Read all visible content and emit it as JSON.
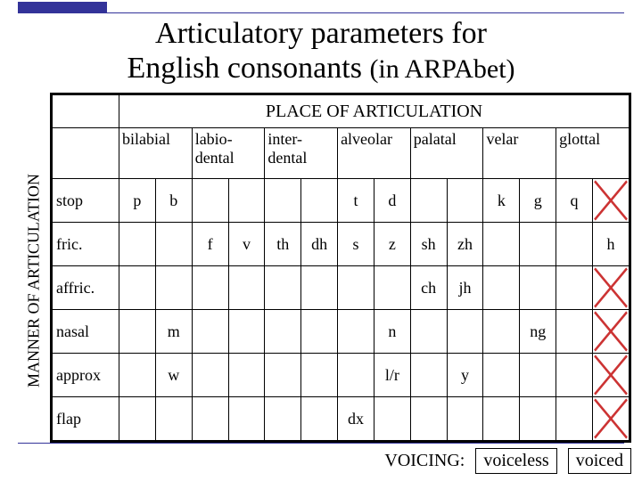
{
  "title_line1": "Articulatory parameters for",
  "title_line2a": "English consonants ",
  "title_line2b": "(in ARPAbet)",
  "place_label": "PLACE OF ARTICULATION",
  "manner_label": "MANNER OF ARTICULATION",
  "colors": {
    "accent": "#333399",
    "cross": "#cc3333",
    "background": "#ffffff",
    "border": "#000000"
  },
  "columns": [
    {
      "label": "",
      "span": 1,
      "class": "manner-col"
    },
    {
      "label": "bilabial",
      "span": 2
    },
    {
      "label": "labio-\ndental",
      "span": 2
    },
    {
      "label": "inter-\ndental",
      "span": 2
    },
    {
      "label": "alveolar",
      "span": 2
    },
    {
      "label": "palatal",
      "span": 2
    },
    {
      "label": "velar",
      "span": 2
    },
    {
      "label": "glottal",
      "span": 2
    }
  ],
  "rows": [
    {
      "label": "stop",
      "cells": [
        "p",
        "b",
        "",
        "",
        "",
        "",
        "t",
        "d",
        "",
        "",
        "k",
        "g",
        "q",
        "X"
      ]
    },
    {
      "label": "fric.",
      "cells": [
        "",
        "",
        "f",
        "v",
        "th",
        "dh",
        "s",
        "z",
        "sh",
        "zh",
        "",
        "",
        "",
        "h"
      ]
    },
    {
      "label": "affric.",
      "cells": [
        "",
        "",
        "",
        "",
        "",
        "",
        "",
        "",
        "ch",
        "jh",
        "",
        "",
        "",
        "X"
      ]
    },
    {
      "label": "nasal",
      "cells": [
        "",
        "m",
        "",
        "",
        "",
        "",
        "",
        "n",
        "",
        "",
        "",
        "ng",
        "",
        "X"
      ]
    },
    {
      "label": "approx",
      "cells": [
        "",
        "w",
        "",
        "",
        "",
        "",
        "",
        "l/r",
        "",
        "y",
        "",
        "",
        "",
        "X"
      ]
    },
    {
      "label": "flap",
      "cells": [
        "",
        "",
        "",
        "",
        "",
        "",
        "dx",
        "",
        "",
        "",
        "",
        "",
        "",
        "X"
      ]
    }
  ],
  "voicing": {
    "label": "VOICING:",
    "left": "voiceless",
    "right": "voiced"
  }
}
